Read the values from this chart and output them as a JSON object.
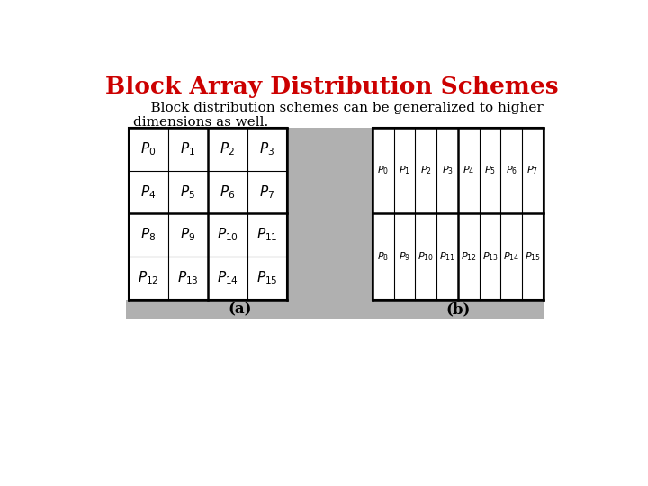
{
  "title": "Block Array Distribution Schemes",
  "title_color": "#cc0000",
  "subtitle": "    Block distribution schemes can be generalized to higher\ndimensions as well.",
  "bg_color": "#ffffff",
  "gray_color": "#b0b0b0",
  "label_a": "(a)",
  "label_b": "(b)",
  "grid_a_labels": [
    [
      "P_0",
      "P_1",
      "P_2",
      "P_3"
    ],
    [
      "P_4",
      "P_5",
      "P_6",
      "P_7"
    ],
    [
      "P_8",
      "P_9",
      "P_{10}",
      "P_{11}"
    ],
    [
      "P_{12}",
      "P_{13}",
      "P_{14}",
      "P_{15}"
    ]
  ],
  "grid_b_row0": [
    "P_0",
    "P_1",
    "P_2",
    "P_3",
    "P_4",
    "P_5",
    "P_6",
    "P_7"
  ],
  "grid_b_row1": [
    "P_8",
    "P_9",
    "P_{10}",
    "P_{11}",
    "P_{12}",
    "P_{13}",
    "P_{14}",
    "P_{15}"
  ]
}
